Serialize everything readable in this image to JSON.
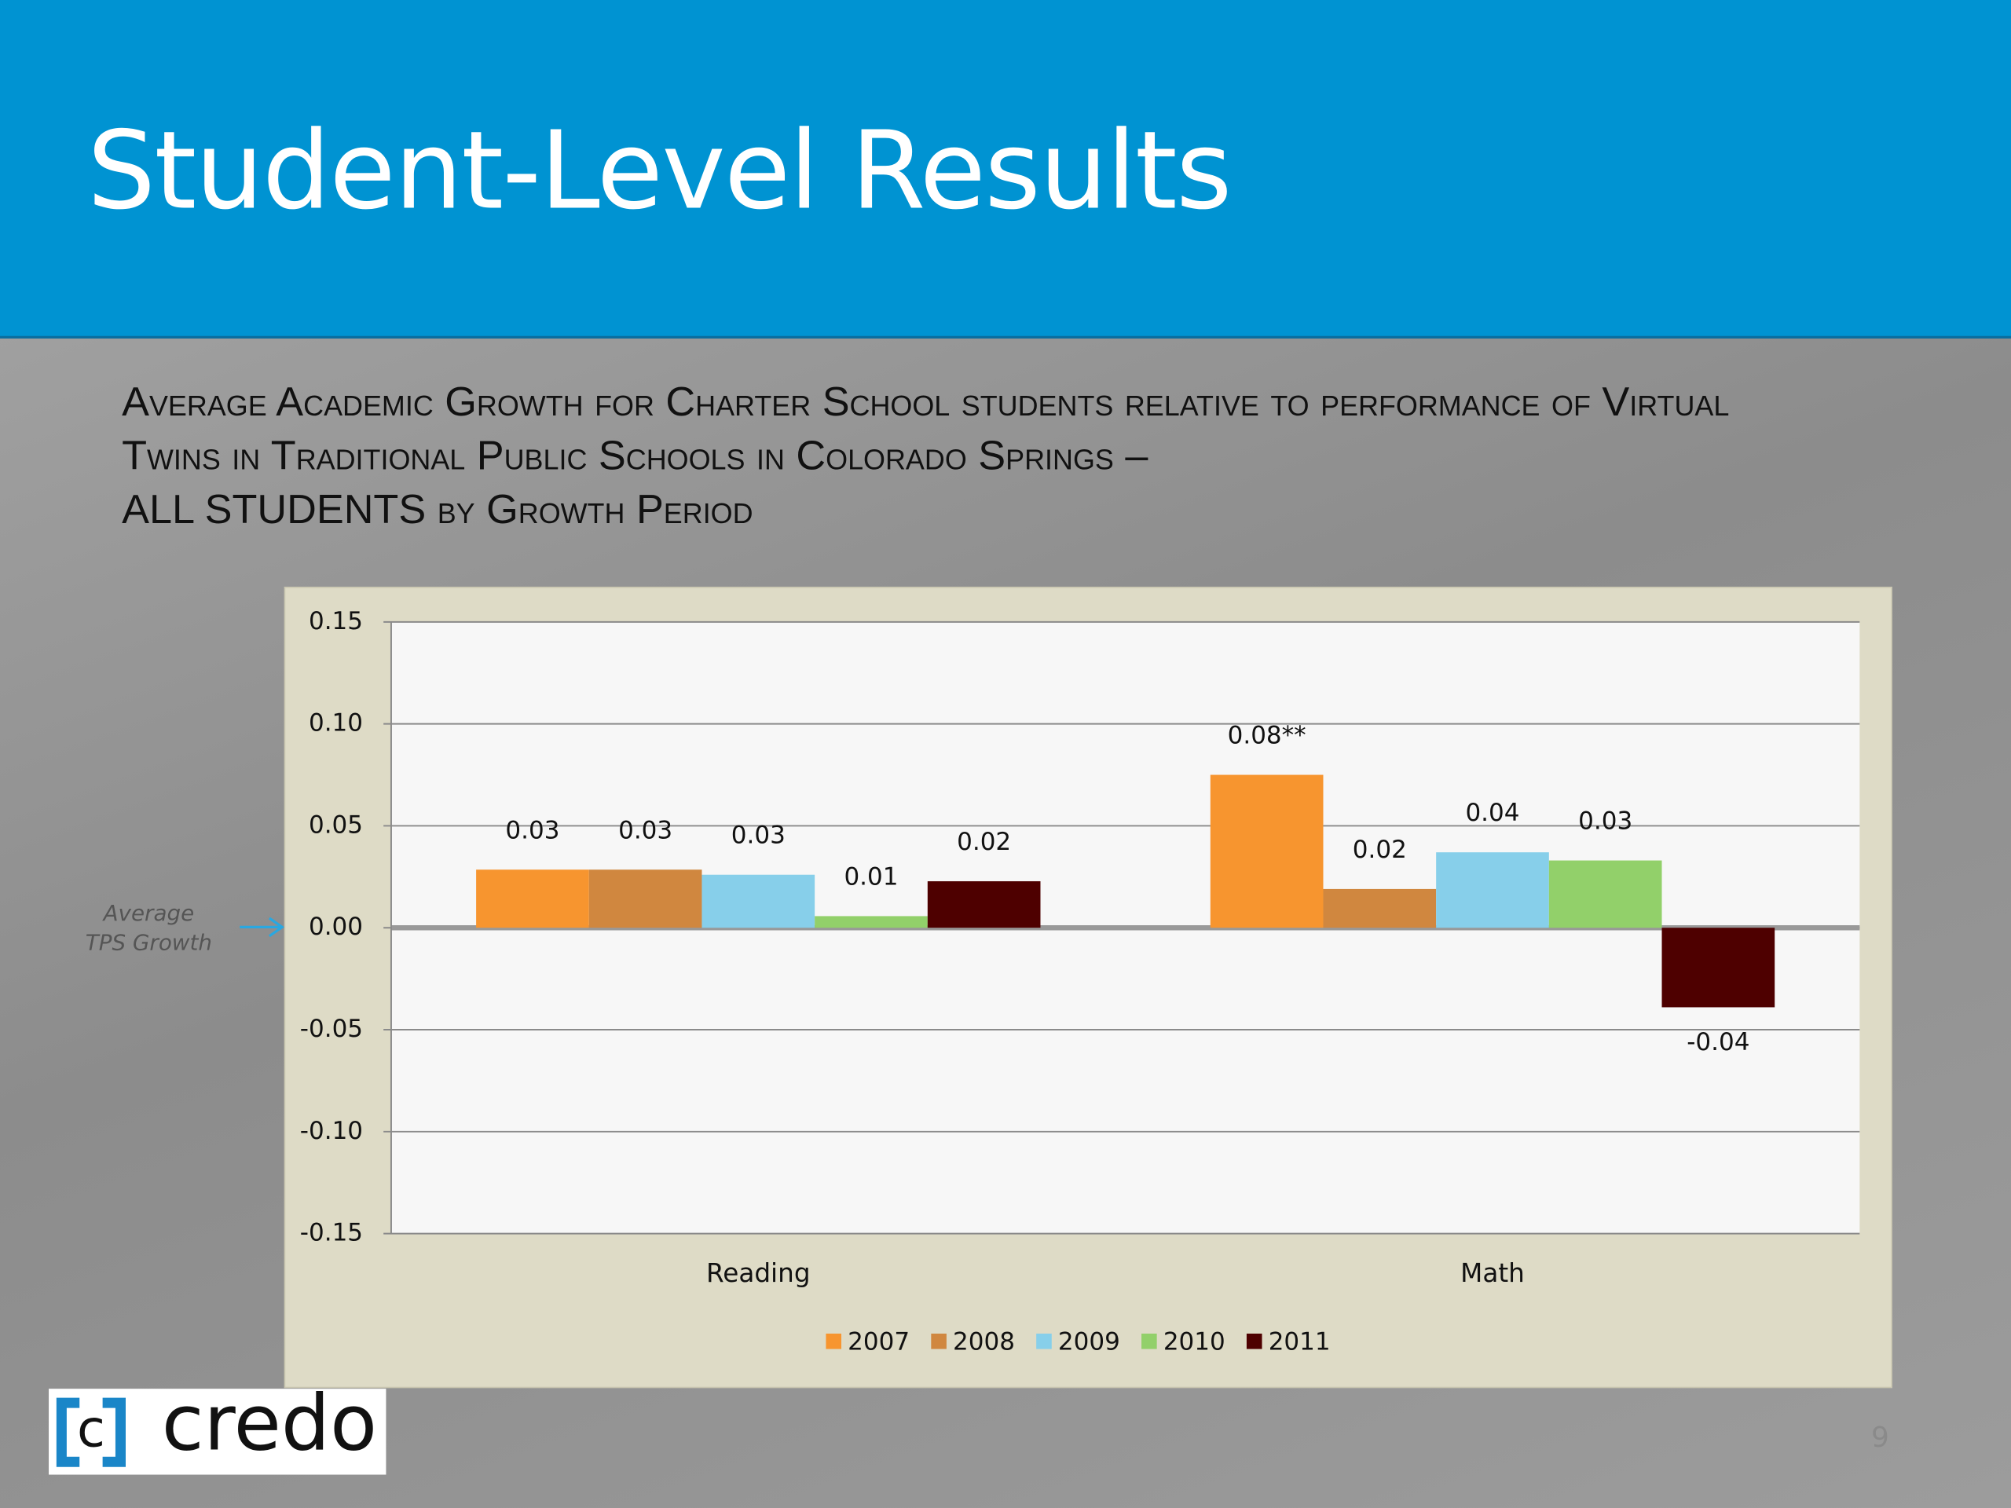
{
  "slide": {
    "title": "Student-Level Results",
    "logo": "credo",
    "page_number": "9"
  },
  "chart_data": {
    "type": "bar",
    "title": "Average Academic Growth for Charter School students relative to performance of Virtual Twins in Traditional Public Schools in Colorado Springs –",
    "subtitle": "ALL STUDENTS by Growth Period",
    "annotation": [
      "Average",
      "TPS Growth"
    ],
    "categories": [
      "Reading",
      "Math"
    ],
    "series": [
      {
        "name": "2007",
        "color": "#f7952f",
        "values": [
          0.0285,
          0.075
        ],
        "value_labels": [
          "0.03",
          "0.08**"
        ]
      },
      {
        "name": "2008",
        "color": "#d0873f",
        "values": [
          0.0285,
          0.019
        ],
        "value_labels": [
          "0.03",
          "0.02"
        ]
      },
      {
        "name": "2009",
        "color": "#87cfea",
        "values": [
          0.026,
          0.037
        ],
        "value_labels": [
          "0.03",
          "0.04"
        ]
      },
      {
        "name": "2010",
        "color": "#92d06a",
        "values": [
          0.0057,
          0.033
        ],
        "value_labels": [
          "0.01",
          "0.03"
        ]
      },
      {
        "name": "2011",
        "color": "#4e0000",
        "values": [
          0.0228,
          -0.039
        ],
        "value_labels": [
          "0.02",
          "-0.04"
        ]
      }
    ],
    "ylim": [
      -0.15,
      0.15
    ],
    "yticks": [
      {
        "value": -0.15,
        "label": "-0.15"
      },
      {
        "value": -0.1,
        "label": "-0.10"
      },
      {
        "value": -0.05,
        "label": "-0.05"
      },
      {
        "value": 0,
        "label": "0.00"
      },
      {
        "value": 0.05,
        "label": "0.05"
      },
      {
        "value": 0.1,
        "label": "0.10"
      },
      {
        "value": 0.15,
        "label": "0.15"
      }
    ],
    "grid": true,
    "legend": "bottom"
  }
}
